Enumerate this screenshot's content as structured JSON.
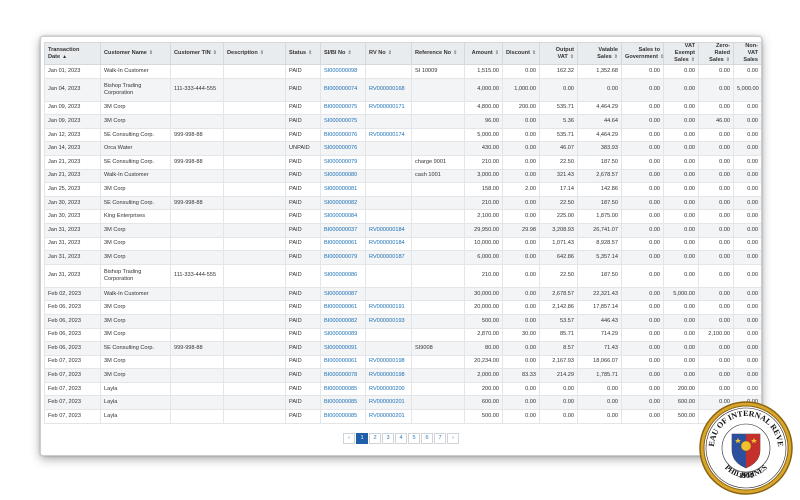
{
  "table": {
    "columns": [
      {
        "label": "Transaction Date",
        "sort": "▲",
        "num": false
      },
      {
        "label": "Customer Name",
        "sort": "⇕",
        "num": false
      },
      {
        "label": "Customer TIN",
        "sort": "⇕",
        "num": false
      },
      {
        "label": "Description",
        "sort": "⇕",
        "num": false
      },
      {
        "label": "Status",
        "sort": "⇕",
        "num": false
      },
      {
        "label": "SI/BI No",
        "sort": "⇕",
        "num": false
      },
      {
        "label": "RV No",
        "sort": "⇕",
        "num": false
      },
      {
        "label": "Reference No",
        "sort": "⇕",
        "num": false
      },
      {
        "label": "Amount",
        "sort": "⇕",
        "num": true
      },
      {
        "label": "Discount",
        "sort": "⇕",
        "num": true
      },
      {
        "label": "Output VAT",
        "sort": "⇕",
        "num": true
      },
      {
        "label": "Vatable Sales",
        "sort": "⇕",
        "num": true
      },
      {
        "label": "Sales to Government",
        "sort": "⇕",
        "num": true
      },
      {
        "label": "VAT Exempt Sales",
        "sort": "⇕",
        "num": true
      },
      {
        "label": "Zero-Rated Sales",
        "sort": "⇕",
        "num": true
      },
      {
        "label": "Non-VAT Sales",
        "sort": "",
        "num": true
      }
    ],
    "rows": [
      [
        "Jan 01, 2023",
        "Walk-In Customer",
        "",
        "",
        "PAID",
        "SI000000098",
        "",
        "SI 10009",
        "1,515.00",
        "0.00",
        "162.32",
        "1,352.68",
        "0.00",
        "0.00",
        "0.00",
        "0.00"
      ],
      [
        "Jan 04, 2023",
        "Bishop Trading Corporation",
        "111-333-444-555",
        "",
        "PAID",
        "BI000000074",
        "RV000000168",
        "",
        "4,000.00",
        "1,000.00",
        "0.00",
        "0.00",
        "0.00",
        "0.00",
        "0.00",
        "5,000.00"
      ],
      [
        "Jan 09, 2023",
        "3M Corp",
        "",
        "",
        "PAID",
        "BI000000075",
        "RV000000171",
        "",
        "4,800.00",
        "200.00",
        "535.71",
        "4,464.29",
        "0.00",
        "0.00",
        "0.00",
        "0.00"
      ],
      [
        "Jan 09, 2023",
        "3M Corp",
        "",
        "",
        "PAID",
        "SI000000075",
        "",
        "",
        "96.00",
        "0.00",
        "5.36",
        "44.64",
        "0.00",
        "0.00",
        "46.00",
        "0.00"
      ],
      [
        "Jan 12, 2023",
        "5E Consulting Corp.",
        "999-998-88",
        "",
        "PAID",
        "BI000000076",
        "RV000000174",
        "",
        "5,000.00",
        "0.00",
        "535.71",
        "4,464.29",
        "0.00",
        "0.00",
        "0.00",
        "0.00"
      ],
      [
        "Jan 14, 2023",
        "Orca Water",
        "",
        "",
        "UNPAID",
        "SI000000076",
        "",
        "",
        "430.00",
        "0.00",
        "46.07",
        "383.93",
        "0.00",
        "0.00",
        "0.00",
        "0.00"
      ],
      [
        "Jan 21, 2023",
        "5E Consulting Corp.",
        "999-998-88",
        "",
        "PAID",
        "SI000000079",
        "",
        "charge 9001",
        "210.00",
        "0.00",
        "22.50",
        "187.50",
        "0.00",
        "0.00",
        "0.00",
        "0.00"
      ],
      [
        "Jan 21, 2023",
        "Walk-In Customer",
        "",
        "",
        "PAID",
        "SI000000080",
        "",
        "cash 1001",
        "3,000.00",
        "0.00",
        "321.43",
        "2,678.57",
        "0.00",
        "0.00",
        "0.00",
        "0.00"
      ],
      [
        "Jan 25, 2023",
        "3M Corp",
        "",
        "",
        "PAID",
        "SI000000081",
        "",
        "",
        "158.00",
        "2.00",
        "17.14",
        "142.86",
        "0.00",
        "0.00",
        "0.00",
        "0.00"
      ],
      [
        "Jan 30, 2023",
        "5E Consulting Corp.",
        "999-998-88",
        "",
        "PAID",
        "SI000000082",
        "",
        "",
        "210.00",
        "0.00",
        "22.50",
        "187.50",
        "0.00",
        "0.00",
        "0.00",
        "0.00"
      ],
      [
        "Jan 30, 2023",
        "King Enterprises",
        "",
        "",
        "PAID",
        "SI000000084",
        "",
        "",
        "2,100.00",
        "0.00",
        "225.00",
        "1,875.00",
        "0.00",
        "0.00",
        "0.00",
        "0.00"
      ],
      [
        "Jan 31, 2023",
        "3M Corp",
        "",
        "",
        "PAID",
        "BI000000037",
        "RV000000184",
        "",
        "29,950.00",
        "29.98",
        "3,208.93",
        "26,741.07",
        "0.00",
        "0.00",
        "0.00",
        "0.00"
      ],
      [
        "Jan 31, 2023",
        "3M Corp",
        "",
        "",
        "PAID",
        "BI000000061",
        "RV000000184",
        "",
        "10,000.00",
        "0.00",
        "1,071.43",
        "8,928.57",
        "0.00",
        "0.00",
        "0.00",
        "0.00"
      ],
      [
        "Jan 31, 2023",
        "3M Corp",
        "",
        "",
        "PAID",
        "BI000000079",
        "RV000000187",
        "",
        "6,000.00",
        "0.00",
        "642.86",
        "5,357.14",
        "0.00",
        "0.00",
        "0.00",
        "0.00"
      ],
      [
        "Jan 31, 2023",
        "Bishop Trading Corporation",
        "111-333-444-555",
        "",
        "PAID",
        "SI000000086",
        "",
        "",
        "210.00",
        "0.00",
        "22.50",
        "187.50",
        "0.00",
        "0.00",
        "0.00",
        "0.00"
      ],
      [
        "Feb 02, 2023",
        "Walk-In Customer",
        "",
        "",
        "PAID",
        "SI000000087",
        "",
        "",
        "30,000.00",
        "0.00",
        "2,678.57",
        "22,321.43",
        "0.00",
        "5,000.00",
        "0.00",
        "0.00"
      ],
      [
        "Feb 06, 2023",
        "3M Corp",
        "",
        "",
        "PAID",
        "BI000000061",
        "RV000000191",
        "",
        "20,000.00",
        "0.00",
        "2,142.86",
        "17,857.14",
        "0.00",
        "0.00",
        "0.00",
        "0.00"
      ],
      [
        "Feb 06, 2023",
        "3M Corp",
        "",
        "",
        "PAID",
        "BI000000082",
        "RV000000193",
        "",
        "500.00",
        "0.00",
        "53.57",
        "446.43",
        "0.00",
        "0.00",
        "0.00",
        "0.00"
      ],
      [
        "Feb 06, 2023",
        "3M Corp",
        "",
        "",
        "PAID",
        "SI000000089",
        "",
        "",
        "2,870.00",
        "30.00",
        "85.71",
        "714.29",
        "0.00",
        "0.00",
        "2,100.00",
        "0.00"
      ],
      [
        "Feb 06, 2023",
        "5E Consulting Corp.",
        "999-998-88",
        "",
        "PAID",
        "SI000000091",
        "",
        "SI9008",
        "80.00",
        "0.00",
        "8.57",
        "71.43",
        "0.00",
        "0.00",
        "0.00",
        "0.00"
      ],
      [
        "Feb 07, 2023",
        "3M Corp",
        "",
        "",
        "PAID",
        "BI000000061",
        "RV000000198",
        "",
        "20,234.00",
        "0.00",
        "2,167.93",
        "18,066.07",
        "0.00",
        "0.00",
        "0.00",
        "0.00"
      ],
      [
        "Feb 07, 2023",
        "3M Corp",
        "",
        "",
        "PAID",
        "BI000000078",
        "RV000000198",
        "",
        "2,000.00",
        "83.33",
        "214.29",
        "1,785.71",
        "0.00",
        "0.00",
        "0.00",
        "0.00"
      ],
      [
        "Feb 07, 2023",
        "Layla",
        "",
        "",
        "PAID",
        "BI000000085",
        "RV000000200",
        "",
        "200.00",
        "0.00",
        "0.00",
        "0.00",
        "0.00",
        "200.00",
        "0.00",
        "0.00"
      ],
      [
        "Feb 07, 2023",
        "Layla",
        "",
        "",
        "PAID",
        "BI000000085",
        "RV000000201",
        "",
        "600.00",
        "0.00",
        "0.00",
        "0.00",
        "0.00",
        "600.00",
        "0.00",
        "0.00"
      ],
      [
        "Feb 07, 2023",
        "Layla",
        "",
        "",
        "PAID",
        "BI000000085",
        "RV000000201",
        "",
        "500.00",
        "0.00",
        "0.00",
        "0.00",
        "0.00",
        "500.00",
        "0.00",
        "0.00"
      ]
    ],
    "tall_rows": [
      1,
      14
    ]
  },
  "pagination": {
    "prev": "‹",
    "next": "›",
    "pages": [
      "1",
      "2",
      "3",
      "4",
      "5",
      "6",
      "7"
    ],
    "active": 0
  },
  "seal": {
    "top_text": "BUREAU OF INTERNAL REVENUE",
    "bottom_text": "PHILIPPINES",
    "year": "1904"
  },
  "colors": {
    "link": "#1a6fb5",
    "header_bg": "#e9ecef",
    "active_page": "#1e5fa8",
    "seal_gold": "#d9a62b"
  }
}
